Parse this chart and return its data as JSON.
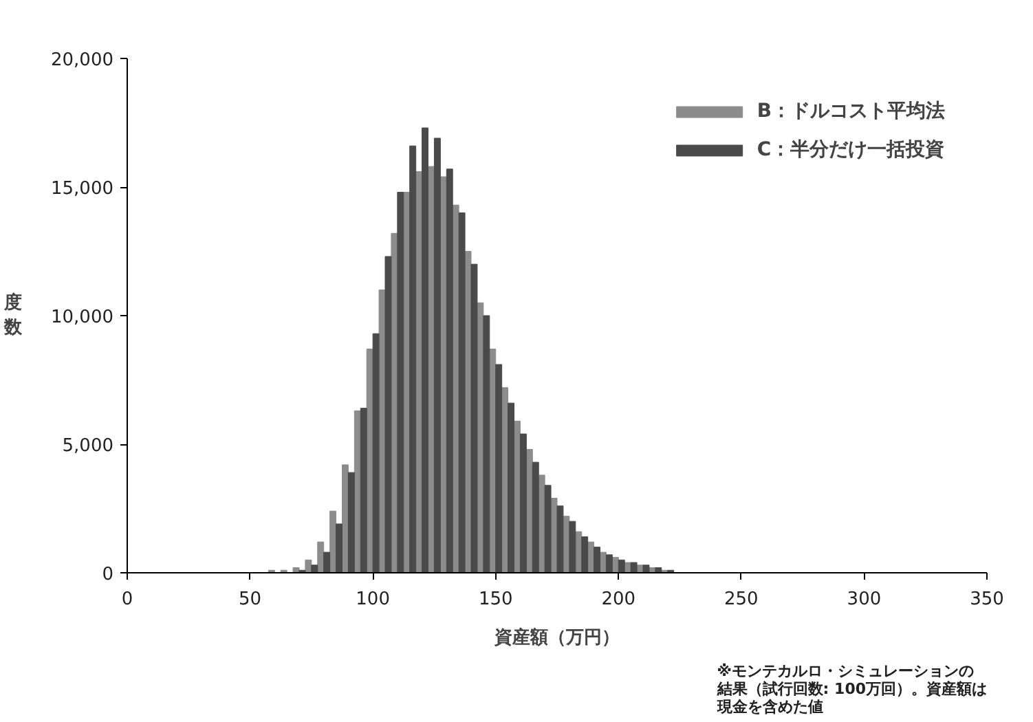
{
  "chart_data": {
    "type": "histogram",
    "xlabel": "資産額（万円）",
    "ylabel": "度数",
    "bins": [
      57.5,
      62.5,
      67.5,
      72.5,
      77.5,
      82.5,
      87.5,
      92.5,
      97.5,
      102.5,
      107.5,
      112.5,
      117.5,
      122.5,
      127.5,
      132.5,
      137.5,
      142.5,
      147.5,
      152.5,
      157.5,
      162.5,
      167.5,
      172.5,
      177.5,
      182.5,
      187.5,
      192.5,
      197.5,
      202.5,
      207.5,
      212.5,
      217.5,
      222.5
    ],
    "series": [
      {
        "name": "B：ドルコスト平均法",
        "color": "#8c8c8c",
        "values": [
          100,
          100,
          200,
          500,
          1200,
          2400,
          4200,
          6300,
          8700,
          11000,
          13200,
          14800,
          15600,
          15800,
          15400,
          14300,
          12500,
          10500,
          8700,
          7200,
          5900,
          4800,
          3800,
          2900,
          2200,
          1600,
          1200,
          800,
          600,
          400,
          300,
          200,
          100
        ]
      },
      {
        "name": "C：半分だけ一括投資",
        "color": "#4a4a4a",
        "values": [
          null,
          null,
          100,
          300,
          800,
          1900,
          3900,
          6400,
          9300,
          12300,
          14800,
          16600,
          17300,
          16900,
          15700,
          14000,
          12000,
          10000,
          8100,
          6600,
          5400,
          4300,
          3400,
          2600,
          2000,
          1400,
          1000,
          700,
          500,
          400,
          300,
          200,
          100
        ]
      }
    ],
    "xlim": [
      0,
      350
    ],
    "xticks": [
      0,
      50,
      100,
      150,
      200,
      250,
      300,
      350
    ],
    "ylim": [
      0,
      20000
    ],
    "yticks": [
      {
        "value": 0,
        "label": "0"
      },
      {
        "value": 5000,
        "label": "5,000"
      },
      {
        "value": 10000,
        "label": "10,000"
      },
      {
        "value": 15000,
        "label": "15,000"
      },
      {
        "value": 20000,
        "label": "20,000"
      }
    ],
    "grid": false,
    "legend": "top right",
    "annotations": [
      "※モンテカルロ・シミュレーションの結果（試行回数: 100万回）。資産額は現金を含めた値"
    ]
  }
}
